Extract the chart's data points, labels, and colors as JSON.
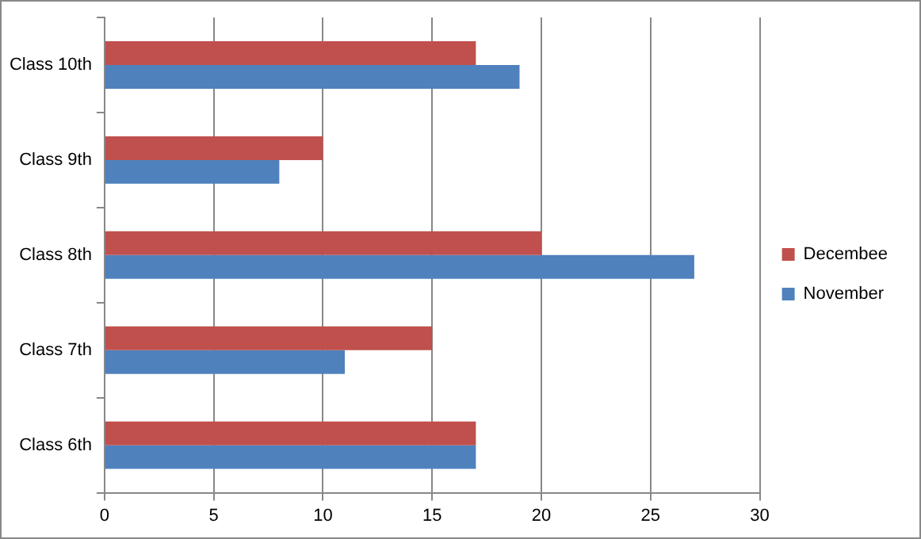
{
  "chart_data": {
    "type": "bar",
    "orientation": "horizontal",
    "categories": [
      "Class 10th",
      "Class 9th",
      "Class 8th",
      "Class 7th",
      "Class 6th"
    ],
    "series": [
      {
        "name": "Decembee",
        "color": "#c0504d",
        "values": [
          17,
          10,
          20,
          15,
          17
        ]
      },
      {
        "name": "November",
        "color": "#4f81bd",
        "values": [
          19,
          8,
          27,
          11,
          17
        ]
      }
    ],
    "xlim": [
      0,
      30
    ],
    "xticks": [
      0,
      5,
      10,
      15,
      20,
      25,
      30
    ],
    "grid": "x",
    "legend": "right"
  }
}
